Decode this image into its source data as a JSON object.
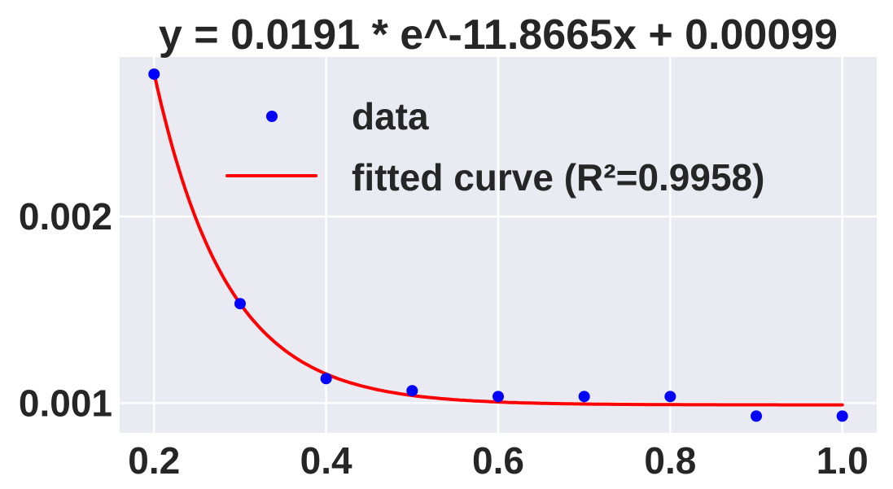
{
  "chart_data": {
    "type": "scatter",
    "title": "y = 0.0191 * e^-11.8665x + 0.00099",
    "xlabel": "",
    "ylabel": "",
    "xlim": [
      0.16,
      1.04
    ],
    "ylim": [
      0.00084,
      0.002856
    ],
    "grid": true,
    "legend_position": "upper right",
    "x_ticks": [
      0.2,
      0.4,
      0.6,
      0.8,
      1.0
    ],
    "x_tick_labels": [
      "0.2",
      "0.4",
      "0.6",
      "0.8",
      "1.0"
    ],
    "y_ticks": [
      0.001,
      0.002
    ],
    "y_tick_labels": [
      "0.001",
      "0.002"
    ],
    "series": [
      {
        "name": "data",
        "kind": "scatter",
        "color": "#0000ff",
        "x": [
          0.2,
          0.3,
          0.4,
          0.5,
          0.6,
          0.7,
          0.8,
          0.9,
          1.0
        ],
        "y": [
          0.002764,
          0.001533,
          0.001131,
          0.001066,
          0.001035,
          0.001035,
          0.001035,
          0.00093,
          0.00093
        ]
      },
      {
        "name": "fitted curve (R²=0.9958)",
        "kind": "line",
        "color": "#ff0000",
        "equation": {
          "a": 0.0191,
          "b": -11.8665,
          "c": 0.00099
        },
        "x_range": [
          0.2,
          1.0
        ]
      }
    ]
  },
  "legend": {
    "data_label": "data",
    "fit_label": "fitted curve (R²=0.9958)"
  },
  "colors": {
    "background": "#eaeaf2",
    "grid": "#ffffff",
    "text": "#262626"
  }
}
